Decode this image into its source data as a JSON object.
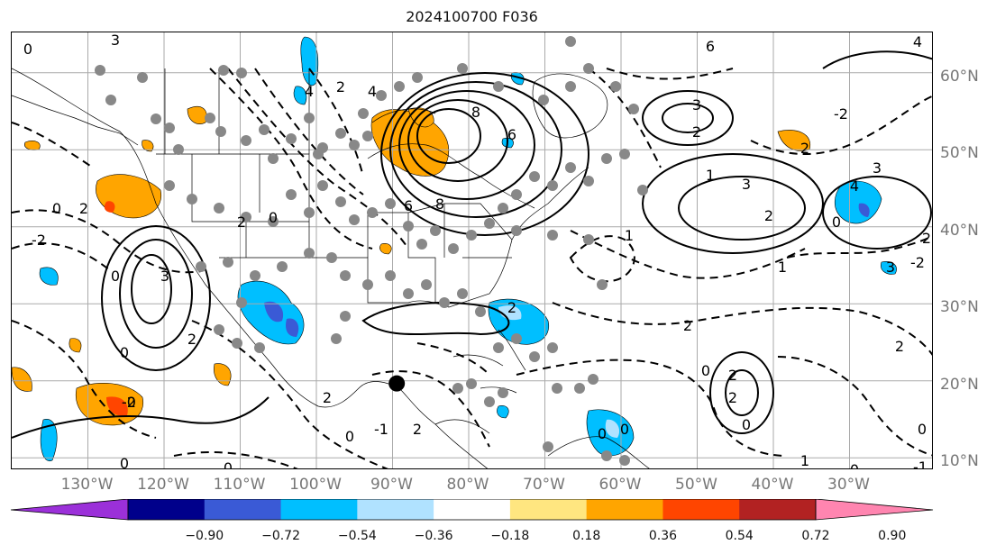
{
  "title": "2024100700 F036",
  "longitude_labels": [
    "130°W",
    "120°W",
    "110°W",
    "100°W",
    "90°W",
    "80°W",
    "70°W",
    "60°W",
    "50°W",
    "40°W",
    "30°W"
  ],
  "latitude_labels": [
    "60°N",
    "50°N",
    "40°N",
    "30°N",
    "20°N",
    "10°N"
  ],
  "colorbar": {
    "tick_labels": [
      "−0.90",
      "−0.72",
      "−0.54",
      "−0.36",
      "−0.18",
      "0.18",
      "0.36",
      "0.54",
      "0.72",
      "0.90"
    ],
    "colors": [
      "#9b30d9",
      "#00008b",
      "#3a5ad6",
      "#00bfff",
      "#b0e2ff",
      "#ffffff",
      "#ffe680",
      "#ffa500",
      "#ff4500",
      "#b22222",
      "#ff85b0"
    ]
  },
  "map": {
    "storm_marker": {
      "lon": -88.5,
      "lat": 22
    },
    "contour_labels": [
      "0",
      "2",
      "3",
      "4",
      "6",
      "8",
      "-2",
      "-1",
      "1"
    ]
  }
}
